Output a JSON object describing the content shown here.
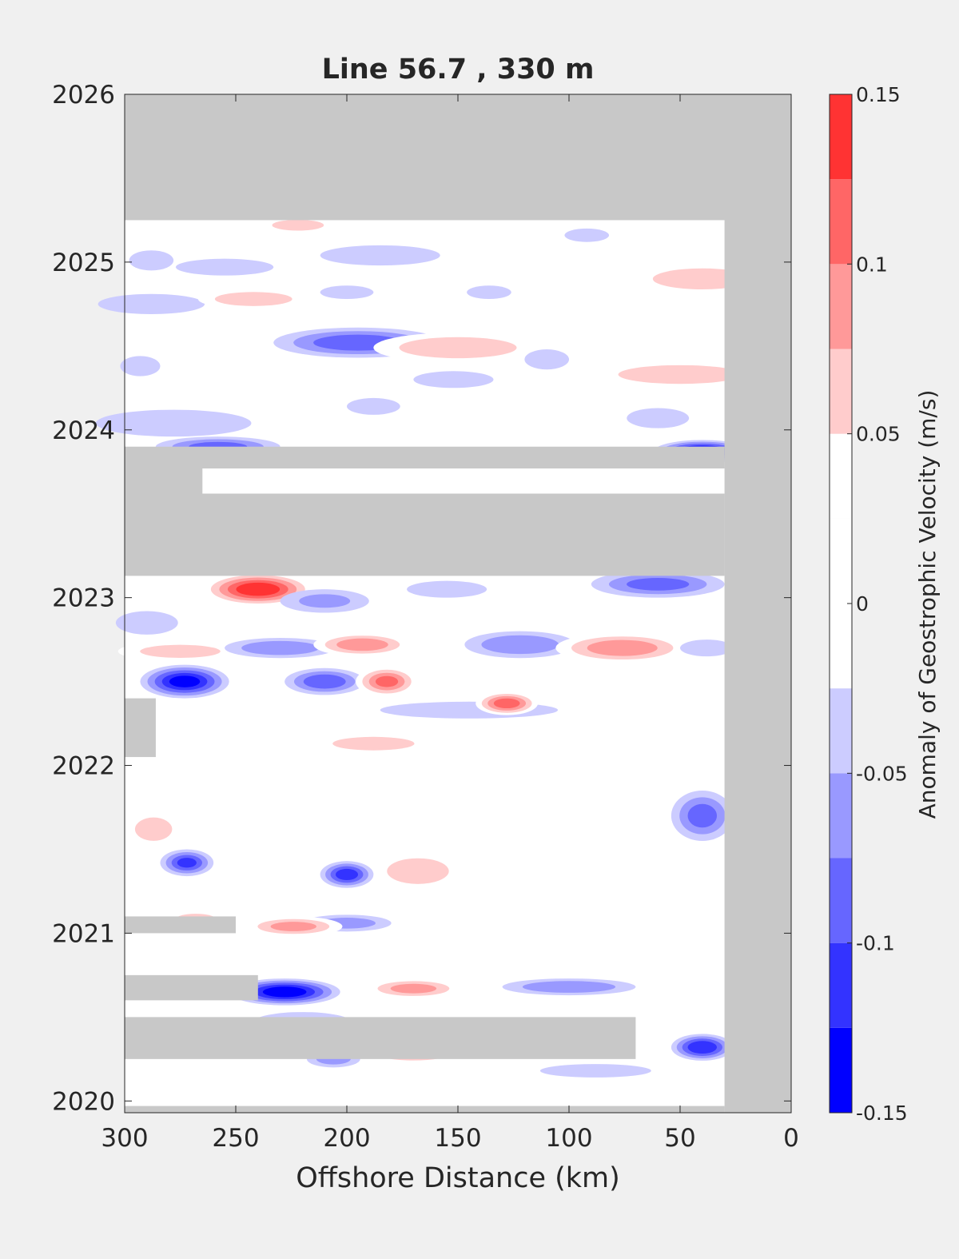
{
  "chart_data": {
    "type": "heatmap",
    "title": "Line 56.7 , 330 m",
    "xlabel": "Offshore Distance (km)",
    "ylabel": "",
    "colorbar_label": "Anomaly of Geostrophic Velocity (m/s)",
    "xlim": [
      300,
      0
    ],
    "ylim": [
      2019.93,
      2026
    ],
    "x_reversed": true,
    "x_ticks": [
      300,
      250,
      200,
      150,
      100,
      50,
      0
    ],
    "y_ticks": [
      2020,
      2021,
      2022,
      2023,
      2024,
      2025,
      2026
    ],
    "clim": [
      -0.15,
      0.15
    ],
    "colorbar_ticks": [
      0.15,
      0.1,
      0.05,
      0,
      -0.05,
      -0.1,
      -0.15
    ],
    "colorbar_tick_labels": [
      "0.15",
      "0.1",
      "0.05",
      "0",
      "-0.05",
      "-0.1",
      "-0.15"
    ],
    "levels": [
      -0.15,
      -0.125,
      -0.1,
      -0.075,
      -0.05,
      -0.025,
      0.025,
      0.05,
      0.075,
      0.1,
      0.125,
      0.15
    ],
    "level_colors": [
      "#0000ff",
      "#3333ff",
      "#6666ff",
      "#9999ff",
      "#ccccff",
      "#ffffff",
      "#ffffff",
      "#ffcccc",
      "#ff9999",
      "#ff6666",
      "#ff3333",
      "#ff0000"
    ],
    "missing_color": "#c8c8c8",
    "background_color": "#ffffff",
    "grid": false,
    "no_data_regions": [
      {
        "x0": 300,
        "x1": 0,
        "y0": 2025.25,
        "y1": 2026
      },
      {
        "x0": 30,
        "x1": 0,
        "y0": 2019.93,
        "y1": 2026
      },
      {
        "x0": 300,
        "x1": 30,
        "y0": 2023.13,
        "y1": 2023.62
      },
      {
        "x0": 300,
        "x1": 30,
        "y0": 2023.77,
        "y1": 2023.9
      },
      {
        "x0": 300,
        "x1": 265,
        "y0": 2023.55,
        "y1": 2023.8
      },
      {
        "x0": 300,
        "x1": 286,
        "y0": 2022.05,
        "y1": 2022.4
      },
      {
        "x0": 300,
        "x1": 250,
        "y0": 2021.0,
        "y1": 2021.1
      },
      {
        "x0": 300,
        "x1": 240,
        "y0": 2020.6,
        "y1": 2020.75
      },
      {
        "x0": 300,
        "x1": 70,
        "y0": 2020.25,
        "y1": 2020.5
      },
      {
        "x0": 300,
        "x1": 30,
        "y0": 2019.93,
        "y1": 2019.97
      }
    ],
    "anomaly_features": [
      {
        "x": 288,
        "y": 2025.01,
        "rx": 10,
        "ry": 0.06,
        "value": -0.03
      },
      {
        "x": 255,
        "y": 2024.97,
        "rx": 22,
        "ry": 0.05,
        "value": -0.03
      },
      {
        "x": 222,
        "y": 2025.22,
        "rx": 18,
        "ry": 0.05,
        "value": 0.06
      },
      {
        "x": 185,
        "y": 2025.04,
        "rx": 27,
        "ry": 0.06,
        "value": -0.03
      },
      {
        "x": 92,
        "y": 2025.16,
        "rx": 10,
        "ry": 0.04,
        "value": -0.03
      },
      {
        "x": 50,
        "y": 2025.17,
        "rx": 14,
        "ry": 0.04,
        "value": 0.04
      },
      {
        "x": 40,
        "y": 2024.9,
        "rx": 32,
        "ry": 0.09,
        "value": 0.07
      },
      {
        "x": 288,
        "y": 2024.75,
        "rx": 24,
        "ry": 0.06,
        "value": -0.03
      },
      {
        "x": 242,
        "y": 2024.78,
        "rx": 25,
        "ry": 0.06,
        "value": 0.07
      },
      {
        "x": 200,
        "y": 2024.82,
        "rx": 12,
        "ry": 0.04,
        "value": -0.03
      },
      {
        "x": 165,
        "y": 2024.77,
        "rx": 12,
        "ry": 0.05,
        "value": 0.04
      },
      {
        "x": 136,
        "y": 2024.82,
        "rx": 10,
        "ry": 0.04,
        "value": -0.03
      },
      {
        "x": 248,
        "y": 2024.54,
        "rx": 52,
        "ry": 0.07,
        "value": 0.04
      },
      {
        "x": 195,
        "y": 2024.52,
        "rx": 38,
        "ry": 0.09,
        "value": -0.09
      },
      {
        "x": 150,
        "y": 2024.49,
        "rx": 38,
        "ry": 0.09,
        "value": 0.07
      },
      {
        "x": 110,
        "y": 2024.42,
        "rx": 10,
        "ry": 0.06,
        "value": -0.03
      },
      {
        "x": 50,
        "y": 2024.33,
        "rx": 40,
        "ry": 0.08,
        "value": 0.07
      },
      {
        "x": 293,
        "y": 2024.38,
        "rx": 9,
        "ry": 0.06,
        "value": -0.04
      },
      {
        "x": 188,
        "y": 2024.14,
        "rx": 12,
        "ry": 0.05,
        "value": -0.03
      },
      {
        "x": 152,
        "y": 2024.3,
        "rx": 18,
        "ry": 0.05,
        "value": -0.03
      },
      {
        "x": 278,
        "y": 2024.04,
        "rx": 35,
        "ry": 0.08,
        "value": -0.04
      },
      {
        "x": 60,
        "y": 2024.07,
        "rx": 14,
        "ry": 0.06,
        "value": -0.03
      },
      {
        "x": 258,
        "y": 2023.9,
        "rx": 28,
        "ry": 0.06,
        "value": -0.08
      },
      {
        "x": 40,
        "y": 2023.87,
        "rx": 22,
        "ry": 0.07,
        "value": -0.14
      },
      {
        "x": 140,
        "y": 2023.92,
        "rx": 60,
        "ry": 0.06,
        "value": 0.04
      },
      {
        "x": 115,
        "y": 2023.72,
        "rx": 25,
        "ry": 0.05,
        "value": 0.04
      },
      {
        "x": 240,
        "y": 2023.05,
        "rx": 25,
        "ry": 0.1,
        "value": 0.14
      },
      {
        "x": 210,
        "y": 2022.98,
        "rx": 20,
        "ry": 0.07,
        "value": -0.05
      },
      {
        "x": 155,
        "y": 2023.05,
        "rx": 18,
        "ry": 0.05,
        "value": -0.03
      },
      {
        "x": 60,
        "y": 2023.08,
        "rx": 30,
        "ry": 0.08,
        "value": -0.08
      },
      {
        "x": 290,
        "y": 2022.85,
        "rx": 14,
        "ry": 0.07,
        "value": -0.03
      },
      {
        "x": 275,
        "y": 2022.68,
        "rx": 28,
        "ry": 0.06,
        "value": 0.06
      },
      {
        "x": 230,
        "y": 2022.7,
        "rx": 25,
        "ry": 0.06,
        "value": -0.07
      },
      {
        "x": 193,
        "y": 2022.72,
        "rx": 22,
        "ry": 0.07,
        "value": 0.09
      },
      {
        "x": 122,
        "y": 2022.72,
        "rx": 25,
        "ry": 0.08,
        "value": -0.07
      },
      {
        "x": 76,
        "y": 2022.7,
        "rx": 30,
        "ry": 0.09,
        "value": 0.09
      },
      {
        "x": 38,
        "y": 2022.7,
        "rx": 12,
        "ry": 0.05,
        "value": -0.03
      },
      {
        "x": 273,
        "y": 2022.5,
        "rx": 20,
        "ry": 0.1,
        "value": -0.13
      },
      {
        "x": 210,
        "y": 2022.5,
        "rx": 18,
        "ry": 0.08,
        "value": -0.09
      },
      {
        "x": 182,
        "y": 2022.5,
        "rx": 14,
        "ry": 0.09,
        "value": 0.1
      },
      {
        "x": 145,
        "y": 2022.33,
        "rx": 40,
        "ry": 0.05,
        "value": -0.04
      },
      {
        "x": 128,
        "y": 2022.37,
        "rx": 14,
        "ry": 0.07,
        "value": 0.11
      },
      {
        "x": 262,
        "y": 2022.27,
        "rx": 12,
        "ry": 0.06,
        "value": 0.04
      },
      {
        "x": 188,
        "y": 2022.13,
        "rx": 32,
        "ry": 0.07,
        "value": 0.05
      },
      {
        "x": 287,
        "y": 2021.62,
        "rx": 12,
        "ry": 0.1,
        "value": 0.07
      },
      {
        "x": 115,
        "y": 2021.82,
        "rx": 30,
        "ry": 0.06,
        "value": 0.04
      },
      {
        "x": 40,
        "y": 2021.7,
        "rx": 14,
        "ry": 0.15,
        "value": -0.08
      },
      {
        "x": 272,
        "y": 2021.42,
        "rx": 12,
        "ry": 0.08,
        "value": -0.1
      },
      {
        "x": 200,
        "y": 2021.35,
        "rx": 12,
        "ry": 0.08,
        "value": -0.11
      },
      {
        "x": 168,
        "y": 2021.37,
        "rx": 20,
        "ry": 0.11,
        "value": 0.07
      },
      {
        "x": 200,
        "y": 2021.06,
        "rx": 20,
        "ry": 0.05,
        "value": -0.06
      },
      {
        "x": 268,
        "y": 2021.07,
        "rx": 18,
        "ry": 0.08,
        "value": 0.05
      },
      {
        "x": 224,
        "y": 2021.04,
        "rx": 22,
        "ry": 0.06,
        "value": 0.08
      },
      {
        "x": 228,
        "y": 2020.65,
        "rx": 25,
        "ry": 0.08,
        "value": -0.14
      },
      {
        "x": 170,
        "y": 2020.67,
        "rx": 22,
        "ry": 0.06,
        "value": 0.08
      },
      {
        "x": 100,
        "y": 2020.68,
        "rx": 30,
        "ry": 0.05,
        "value": -0.07
      },
      {
        "x": 240,
        "y": 2020.45,
        "rx": 45,
        "ry": 0.06,
        "value": 0.06
      },
      {
        "x": 170,
        "y": 2020.28,
        "rx": 25,
        "ry": 0.06,
        "value": 0.06
      },
      {
        "x": 206,
        "y": 2020.25,
        "rx": 12,
        "ry": 0.05,
        "value": -0.06
      },
      {
        "x": 40,
        "y": 2020.32,
        "rx": 14,
        "ry": 0.08,
        "value": -0.12
      },
      {
        "x": 88,
        "y": 2020.18,
        "rx": 25,
        "ry": 0.04,
        "value": -0.03
      },
      {
        "x": 270,
        "y": 2020.04,
        "rx": 18,
        "ry": 0.04,
        "value": 0.04
      },
      {
        "x": 220,
        "y": 2020.47,
        "rx": 22,
        "ry": 0.06,
        "value": -0.04
      },
      {
        "x": 52,
        "y": 2020.65,
        "rx": 10,
        "ry": 0.04,
        "value": 0.04
      },
      {
        "x": 35,
        "y": 2022.36,
        "rx": 6,
        "ry": 0.07,
        "value": 0.04
      }
    ]
  }
}
